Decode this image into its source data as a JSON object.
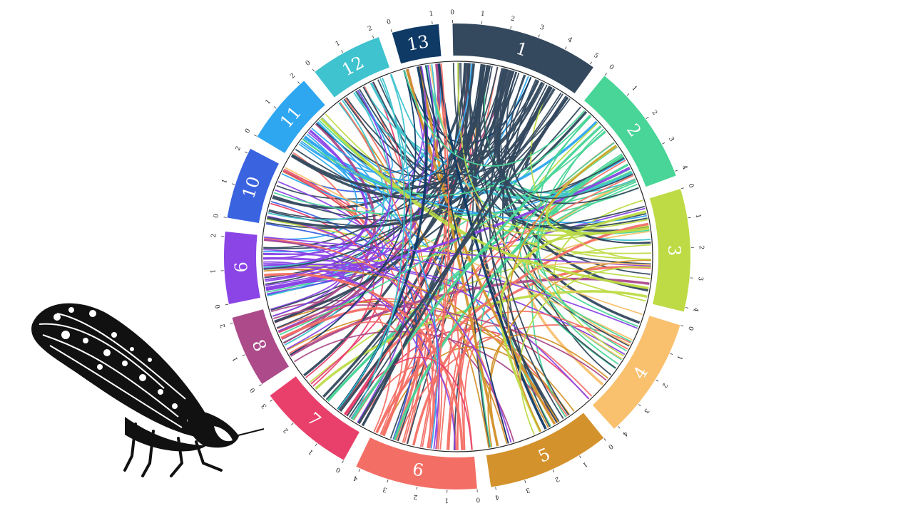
{
  "chart_data": {
    "type": "chord",
    "segments": [
      {
        "label": "1",
        "color": "#34495e",
        "ticks": [
          "0",
          "1",
          "2",
          "3",
          "4",
          "5"
        ]
      },
      {
        "label": "2",
        "color": "#48d597",
        "ticks": [
          "0",
          "1",
          "2",
          "3",
          "4"
        ]
      },
      {
        "label": "3",
        "color": "#bedb46",
        "ticks": [
          "0",
          "1",
          "2",
          "3",
          "4"
        ]
      },
      {
        "label": "4",
        "color": "#f9c06e",
        "ticks": [
          "0",
          "1",
          "2",
          "3",
          "4"
        ]
      },
      {
        "label": "5",
        "color": "#d4922c",
        "ticks": [
          "0",
          "1",
          "2",
          "3",
          "4"
        ]
      },
      {
        "label": "6",
        "color": "#f36f65",
        "ticks": [
          "0",
          "1",
          "2",
          "3",
          "4"
        ]
      },
      {
        "label": "7",
        "color": "#e8406b",
        "ticks": [
          "0",
          "1",
          "2",
          "3"
        ]
      },
      {
        "label": "8",
        "color": "#ac4a8a",
        "ticks": [
          "0",
          "1",
          "2"
        ]
      },
      {
        "label": "9",
        "color": "#8b44e6",
        "ticks": [
          "0",
          "1",
          "2"
        ]
      },
      {
        "label": "10",
        "color": "#3a63e0",
        "ticks": [
          "0",
          "1",
          "2"
        ]
      },
      {
        "label": "11",
        "color": "#2ea6f0",
        "ticks": [
          "0",
          "1",
          "2"
        ]
      },
      {
        "label": "12",
        "color": "#3ec3cf",
        "ticks": [
          "0",
          "1",
          "2"
        ]
      },
      {
        "label": "13",
        "color": "#0f3a66",
        "ticks": [
          "0",
          "1"
        ]
      }
    ]
  },
  "illustration": {
    "name": "leafhopper insect drawing"
  }
}
